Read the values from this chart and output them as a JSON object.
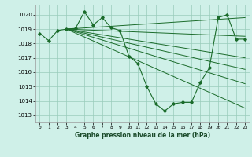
{
  "title": "Graphe pression niveau de la mer (hPa)",
  "bg_color": "#cff0e8",
  "grid_color": "#99ccbb",
  "line_color": "#1a6b2a",
  "xlim": [
    -0.5,
    23.5
  ],
  "ylim": [
    1012.5,
    1020.7
  ],
  "yticks": [
    1013,
    1014,
    1015,
    1016,
    1017,
    1018,
    1019,
    1020
  ],
  "xticks": [
    0,
    1,
    2,
    3,
    4,
    5,
    6,
    7,
    8,
    9,
    10,
    11,
    12,
    13,
    14,
    15,
    16,
    17,
    18,
    19,
    20,
    21,
    22,
    23
  ],
  "hours": [
    0,
    1,
    2,
    3,
    4,
    5,
    6,
    7,
    8,
    9,
    10,
    11,
    12,
    13,
    14,
    15,
    16,
    17,
    18,
    19,
    20,
    21,
    22,
    23
  ],
  "pressure_main": [
    1018.7,
    1018.2,
    1018.9,
    1019.0,
    1019.05,
    1020.2,
    1019.3,
    1019.8,
    1019.1,
    1018.9,
    1017.1,
    1016.6,
    1015.0,
    1013.8,
    1013.3,
    1013.8,
    1013.9,
    1013.9,
    1015.3,
    1016.3,
    1019.8,
    1020.0,
    1018.3,
    1018.3
  ],
  "conv_x": 3,
  "conv_y": 1019.0,
  "trend_end_x": 23,
  "trend_ends_y": [
    1019.8,
    1018.5,
    1017.0,
    1016.2,
    1015.2,
    1013.5
  ]
}
